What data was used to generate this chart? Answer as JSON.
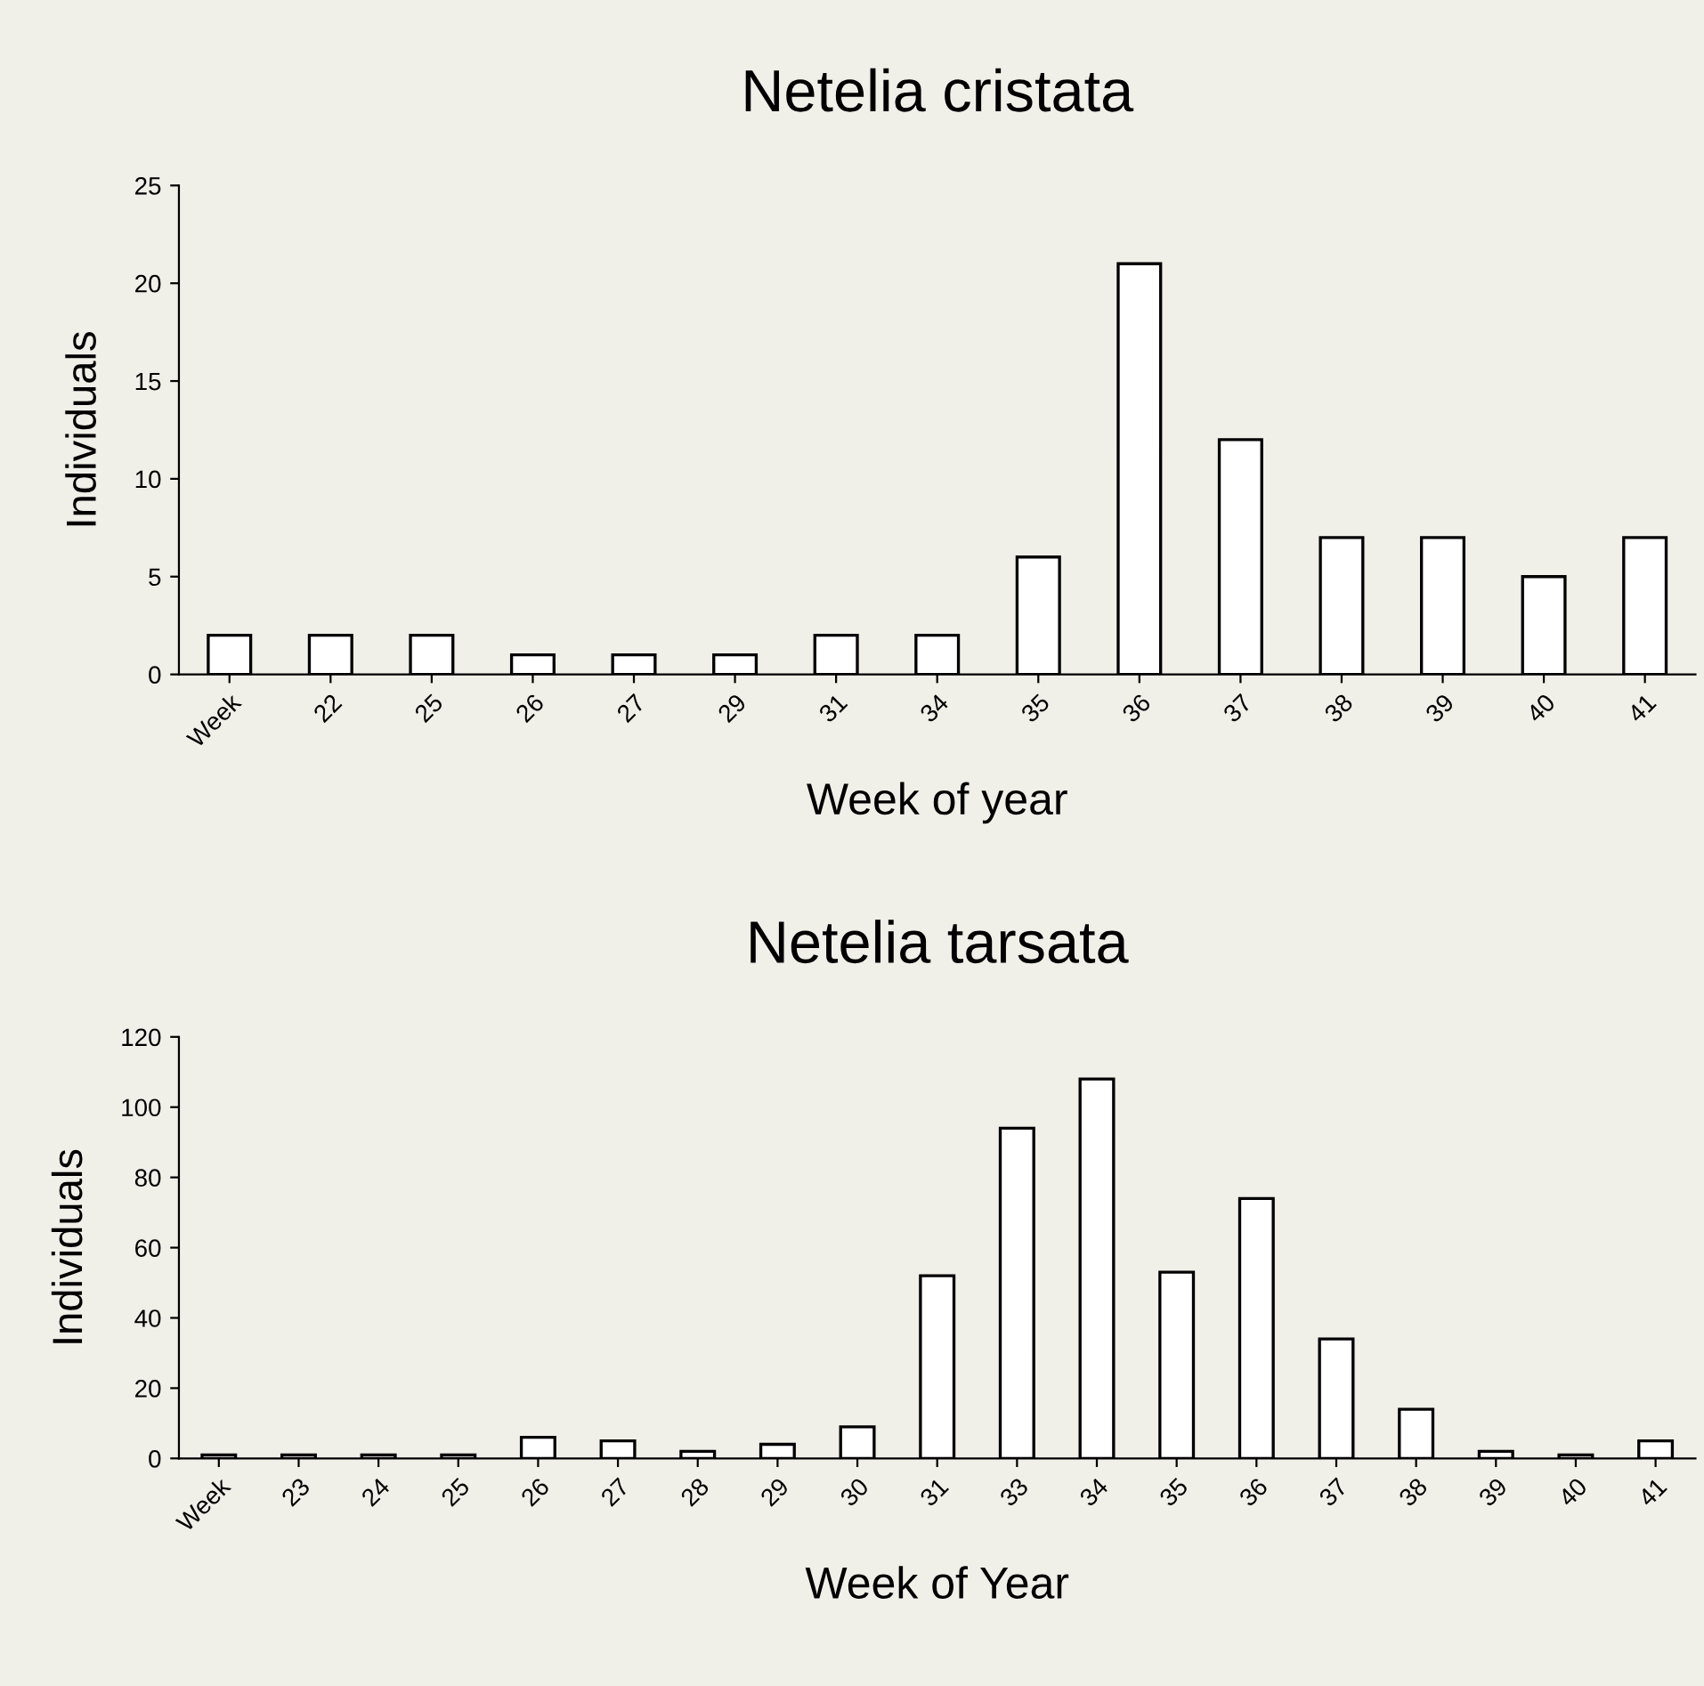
{
  "chart_data": [
    {
      "type": "bar",
      "title": "Netelia cristata",
      "xlabel": "Week of year",
      "ylabel": "Individuals",
      "categories": [
        "Week",
        "22",
        "25",
        "26",
        "27",
        "29",
        "31",
        "34",
        "35",
        "36",
        "37",
        "38",
        "39",
        "40",
        "41"
      ],
      "values": [
        2,
        2,
        2,
        1,
        1,
        1,
        2,
        2,
        6,
        21,
        12,
        7,
        7,
        5,
        7
      ],
      "color": "#ffffff",
      "ylim": [
        0,
        25
      ],
      "yticks": [
        0,
        5,
        10,
        15,
        20,
        25
      ],
      "grid": false,
      "legend": false
    },
    {
      "type": "bar",
      "title": "Netelia tarsata",
      "xlabel": "Week of Year",
      "ylabel": "Individuals",
      "categories": [
        "Week",
        "23",
        "24",
        "25",
        "26",
        "27",
        "28",
        "29",
        "30",
        "31",
        "33",
        "34",
        "35",
        "36",
        "37",
        "38",
        "39",
        "40",
        "41"
      ],
      "values": [
        1,
        1,
        1,
        1,
        6,
        5,
        2,
        4,
        9,
        52,
        94,
        108,
        53,
        74,
        34,
        14,
        2,
        1,
        5
      ],
      "color": "#ffffff",
      "ylim": [
        0,
        120
      ],
      "yticks": [
        0,
        20,
        40,
        60,
        80,
        100,
        120
      ],
      "grid": false,
      "legend": false
    }
  ]
}
